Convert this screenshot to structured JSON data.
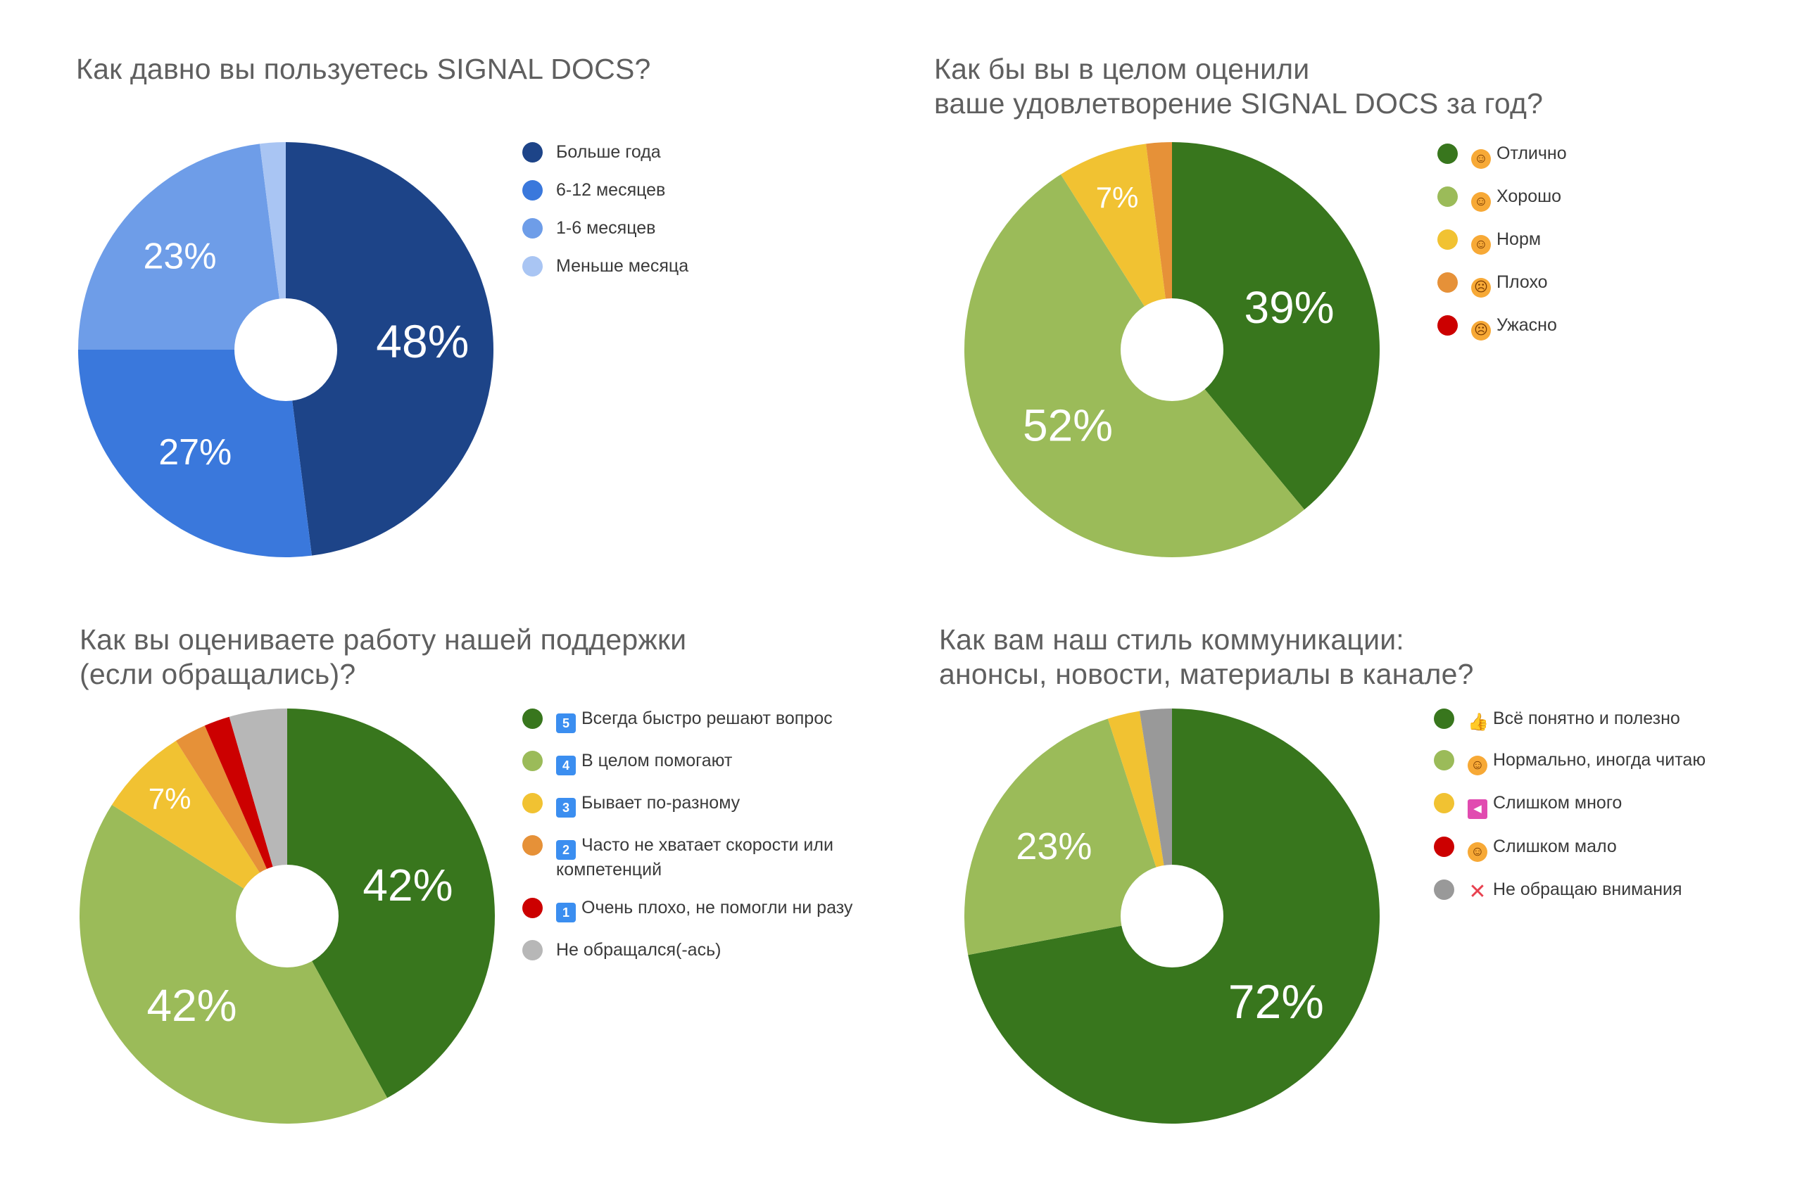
{
  "chart_data": [
    {
      "type": "pie",
      "title": "Как давно вы пользуетесь SIGNAL DOCS?",
      "categories": [
        "Больше года",
        "6-12 месяцев",
        "1-6 месяцев",
        "Меньше месяца"
      ],
      "values": [
        48,
        27,
        23,
        2
      ],
      "labels": [
        "48%",
        "27%",
        "23%",
        ""
      ],
      "colors": [
        "#1d4488",
        "#3a78dc",
        "#6e9de8",
        "#a9c5f3"
      ],
      "icons": [
        "",
        "",
        "",
        ""
      ],
      "legend_position": "right"
    },
    {
      "type": "pie",
      "title": "Как бы вы в целом оценили\nваше удовлетворение SIGNAL DOCS за год?",
      "categories": [
        "Отлично",
        "Хорошо",
        "Норм",
        "Плохо",
        "Ужасно"
      ],
      "values": [
        39,
        52,
        7,
        2,
        0
      ],
      "labels": [
        "39%",
        "52%",
        "7%",
        "",
        ""
      ],
      "colors": [
        "#38761d",
        "#9bbb59",
        "#f1c232",
        "#e69138",
        "#cc0000"
      ],
      "icons": [
        "face-grin-icon",
        "face-smile-icon",
        "face-neutral-icon",
        "face-sad-icon",
        "face-frown-icon"
      ],
      "legend_position": "right"
    },
    {
      "type": "pie",
      "title": "Как вы оцениваете работу нашей поддержки\n(если обращались)?",
      "categories": [
        "Всегда быстро решают вопрос",
        "В целом помогают",
        "Бывает по-разному",
        "Часто не хватает скорости или\nкомпетенций",
        "Очень плохо, не помогли ни разу",
        "Не обращался(-ась)"
      ],
      "values": [
        42,
        42,
        7,
        2.5,
        2,
        4.5
      ],
      "labels": [
        "42%",
        "42%",
        "7%",
        "",
        "",
        ""
      ],
      "colors": [
        "#38761d",
        "#9bbb59",
        "#f1c232",
        "#e69138",
        "#cc0000",
        "#b7b7b7"
      ],
      "icons": [
        "keycap-5-icon",
        "keycap-4-icon",
        "keycap-3-icon",
        "keycap-2-icon",
        "keycap-1-icon",
        ""
      ],
      "legend_position": "right"
    },
    {
      "type": "pie",
      "title": "Как вам наш стиль коммуникации:\nанонсы, новости, материалы в канале?",
      "categories": [
        "Всё понятно и полезно",
        "Нормально, иногда читаю",
        "Слишком много",
        "Слишком мало",
        "Не обращаю внимания"
      ],
      "values": [
        72,
        23,
        2.5,
        0,
        2.5
      ],
      "labels": [
        "72%",
        "23%",
        "",
        "",
        ""
      ],
      "colors": [
        "#38761d",
        "#9bbb59",
        "#f1c232",
        "#cc0000",
        "#999999"
      ],
      "icons": [
        "thumbs-up-icon",
        "face-smile-icon",
        "megaphone-icon",
        "face-neutral-icon",
        "cross-mark-icon"
      ],
      "legend_position": "right"
    }
  ]
}
